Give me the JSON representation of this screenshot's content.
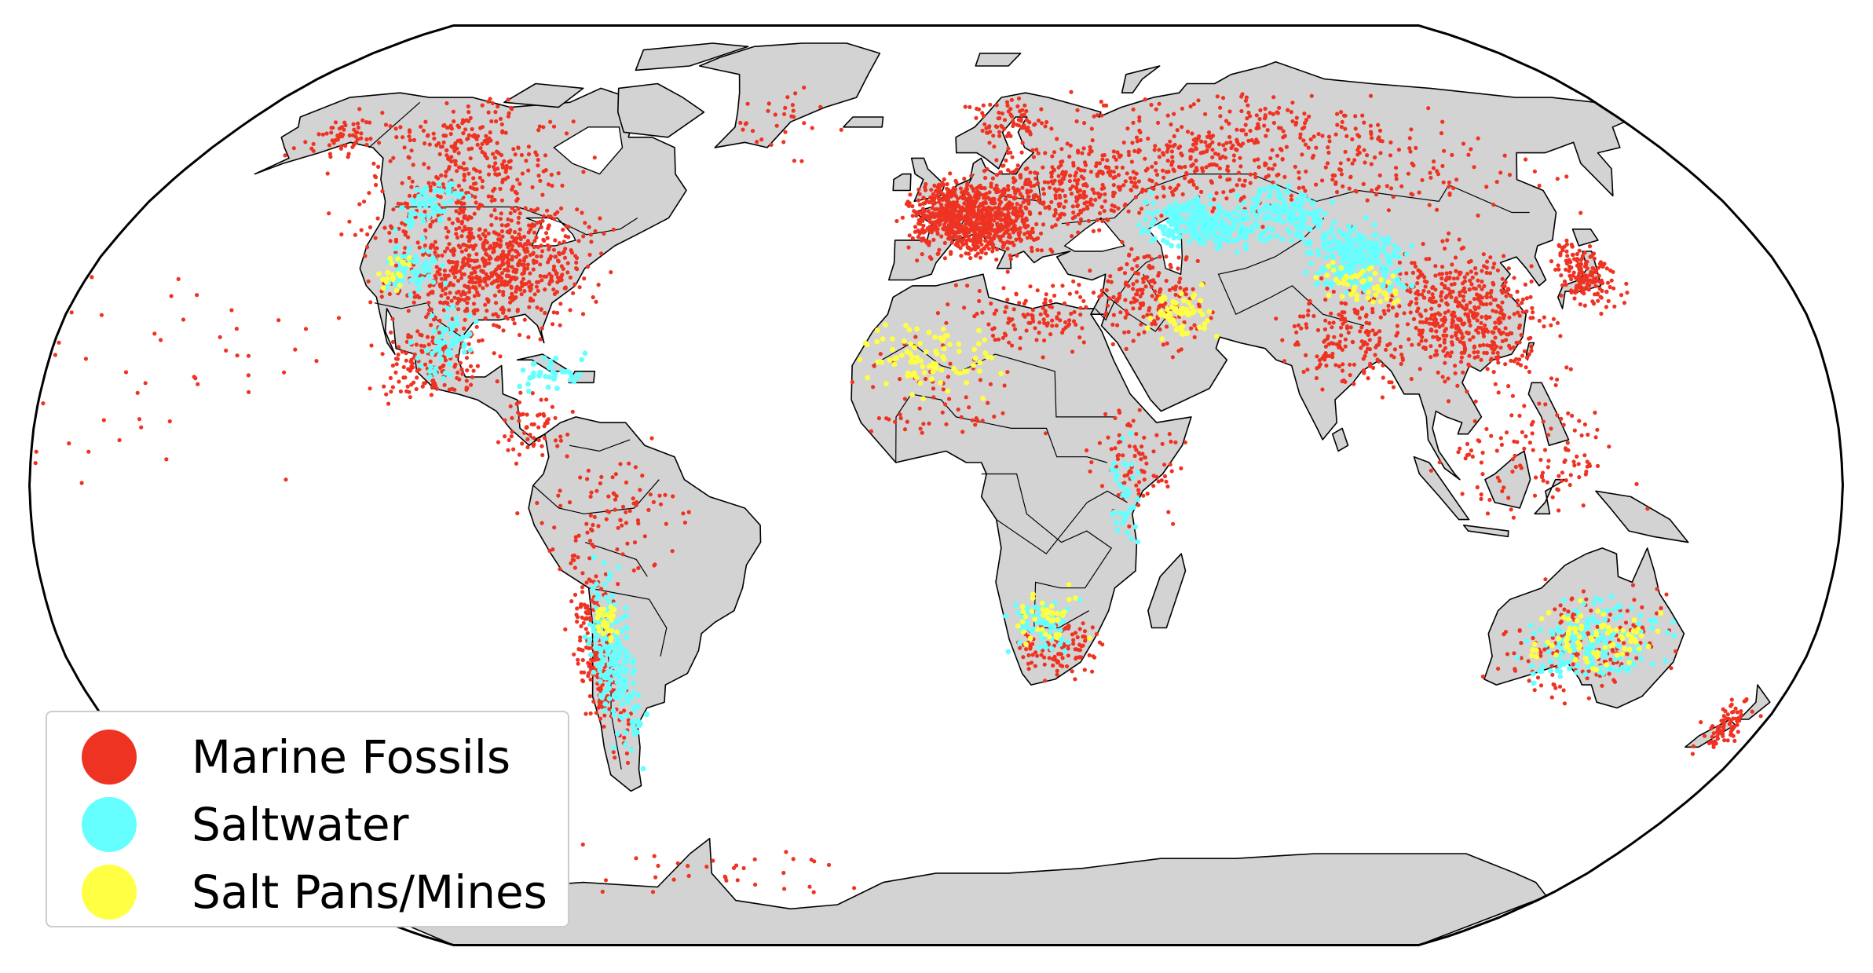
{
  "map": {
    "projection": "robinson",
    "land_color": "#d3d3d3",
    "border_color": "#000000",
    "ocean_color": "#ffffff"
  },
  "legend": {
    "placement": "lower-left",
    "items": [
      {
        "label": "Marine Fossils",
        "color": "#ee3322"
      },
      {
        "label": "Saltwater",
        "color": "#66ffff"
      },
      {
        "label": "Salt Pans/Mines",
        "color": "#ffff44"
      }
    ]
  }
}
